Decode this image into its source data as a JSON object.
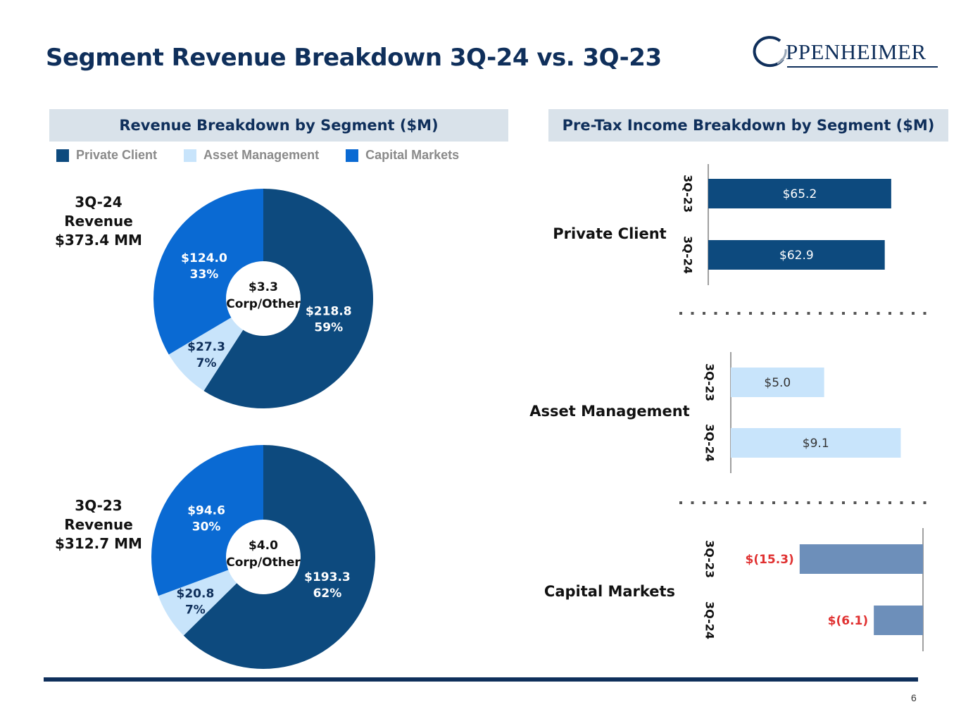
{
  "title": "Segment Revenue Breakdown 3Q-24 vs. 3Q-23",
  "logo": {
    "initial": "O",
    "text": "PPENHEIMER"
  },
  "left_header": "Revenue Breakdown by Segment ($M)",
  "right_header": "Pre-Tax Income Breakdown by Segment ($M)",
  "legend": [
    {
      "label": "Private Client",
      "color": "#0d4a7e"
    },
    {
      "label": "Asset Management",
      "color": "#c8e4fb"
    },
    {
      "label": "Capital Markets",
      "color": "#0a6ad3"
    }
  ],
  "page_number": "6",
  "chart_data": [
    {
      "type": "pie",
      "title_line1": "3Q-24 Revenue",
      "title_line2": "$373.4  MM",
      "center_line1": "$3.3",
      "center_line2": "Corp/Other",
      "slices": [
        {
          "name": "Private Client",
          "value": 218.8,
          "value_label": "$218.8",
          "pct_label": "59%",
          "color": "#0d4a7e"
        },
        {
          "name": "Asset Management",
          "value": 27.3,
          "value_label": "$27.3",
          "pct_label": "7%",
          "color": "#c8e4fb"
        },
        {
          "name": "Capital Markets",
          "value": 124.0,
          "value_label": "$124.0",
          "pct_label": "33%",
          "color": "#0a6ad3"
        }
      ]
    },
    {
      "type": "pie",
      "title_line1": "3Q-23 Revenue",
      "title_line2": "$312.7  MM",
      "center_line1": "$4.0",
      "center_line2": "Corp/Other",
      "slices": [
        {
          "name": "Private Client",
          "value": 193.3,
          "value_label": "$193.3",
          "pct_label": "62%",
          "color": "#0d4a7e"
        },
        {
          "name": "Asset Management",
          "value": 20.8,
          "value_label": "$20.8",
          "pct_label": "7%",
          "color": "#c8e4fb"
        },
        {
          "name": "Capital Markets",
          "value": 94.6,
          "value_label": "$94.6",
          "pct_label": "30%",
          "color": "#0a6ad3"
        }
      ]
    },
    {
      "type": "bar",
      "orientation": "horizontal",
      "title": "Private Client",
      "categories": [
        "3Q-23",
        "3Q-24"
      ],
      "values": [
        65.2,
        62.9
      ],
      "labels": [
        "$65.2",
        "$62.9"
      ],
      "xlim": [
        0,
        70
      ],
      "color": "#0d4a7e",
      "label_color": "#ffffff"
    },
    {
      "type": "bar",
      "orientation": "horizontal",
      "title": "Asset Management",
      "categories": [
        "3Q-23",
        "3Q-24"
      ],
      "values": [
        5.0,
        9.1
      ],
      "labels": [
        "$5.0",
        "$9.1"
      ],
      "xlim": [
        0,
        9.8
      ],
      "color": "#c8e4fb",
      "label_color": "#333333"
    },
    {
      "type": "bar",
      "orientation": "horizontal",
      "title": "Capital Markets",
      "categories": [
        "3Q-23",
        "3Q-24"
      ],
      "values": [
        -15.3,
        -6.1
      ],
      "labels": [
        "$(15.3)",
        "$(6.1)"
      ],
      "xlim": [
        -20,
        0
      ],
      "color": "#6d8fba",
      "label_color": "#e03131"
    }
  ]
}
